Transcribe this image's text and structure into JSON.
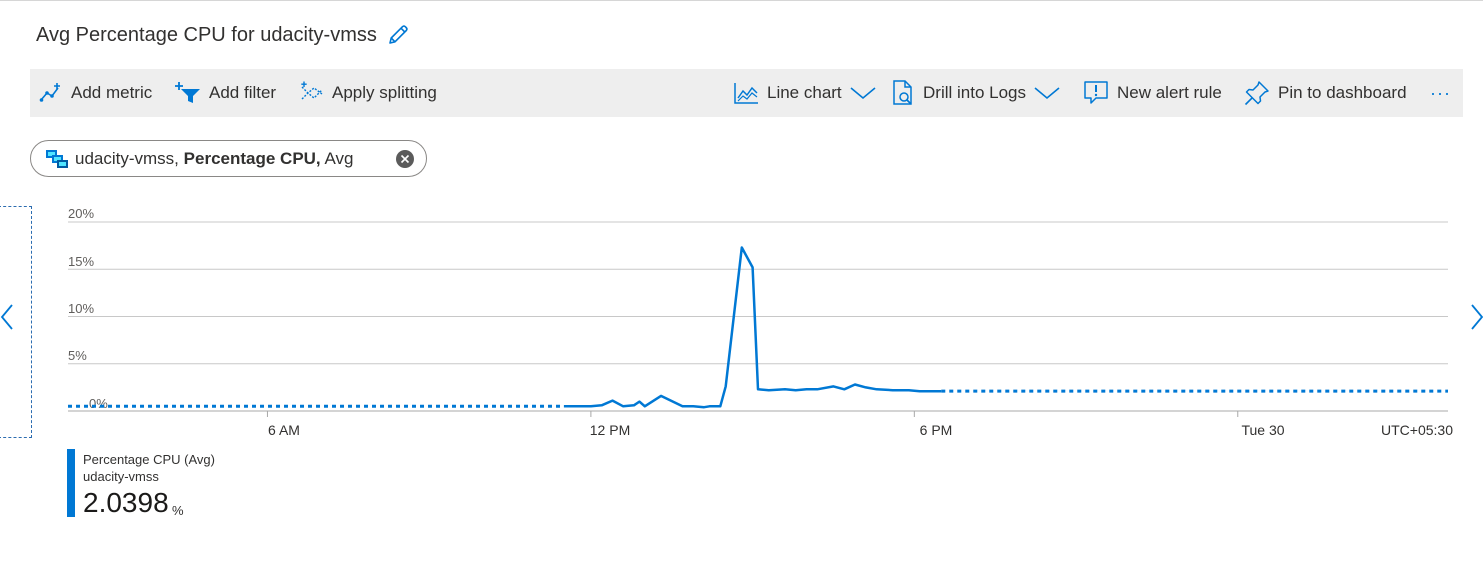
{
  "title": "Avg Percentage CPU for udacity-vmss",
  "toolbar": {
    "add_metric": "Add metric",
    "add_filter": "Add filter",
    "apply_splitting": "Apply splitting",
    "line_chart": "Line chart",
    "drill_into_logs": "Drill into Logs",
    "new_alert_rule": "New alert rule",
    "pin_to_dashboard": "Pin to dashboard",
    "more": "···"
  },
  "metric_pill": {
    "resource": "udacity-vmss,",
    "metric": "Percentage CPU,",
    "aggregation": "Avg"
  },
  "legend": {
    "metric": "Percentage CPU (Avg)",
    "resource": "udacity-vmss",
    "value": "2.0398",
    "unit": "%"
  },
  "timezone": "UTC+05:30",
  "colors": {
    "accent": "#0078d4",
    "toolbar_bg": "#eeeeee",
    "grid": "#c8c8c8"
  },
  "chart_data": {
    "type": "line",
    "y_ticks": [
      "20%",
      "15%",
      "10%",
      "5%",
      "0%"
    ],
    "x_ticks": [
      "6 AM",
      "12 PM",
      "6 PM",
      "Tue 30"
    ],
    "ylim": [
      0,
      20
    ],
    "x_unit": "hours since midnight (local)",
    "xlim": [
      2.3,
      27.9
    ],
    "series": [
      {
        "name": "Percentage CPU (Avg)",
        "x": [
          11.5,
          12.0,
          12.2,
          12.4,
          12.6,
          12.8,
          12.9,
          13.0,
          13.3,
          13.7,
          13.9,
          14.1,
          14.2,
          14.4,
          14.5,
          14.8,
          15.0,
          15.1,
          15.3,
          15.6,
          15.8,
          16.0,
          16.2,
          16.5,
          16.7,
          16.9,
          17.1,
          17.3,
          17.6,
          17.9,
          18.1,
          18.3,
          18.5
        ],
        "y": [
          0.5,
          0.5,
          0.6,
          1.1,
          0.5,
          0.6,
          1.0,
          0.5,
          1.6,
          0.5,
          0.5,
          0.4,
          0.5,
          0.5,
          2.6,
          17.3,
          15.2,
          2.3,
          2.2,
          2.3,
          2.2,
          2.3,
          2.3,
          2.6,
          2.3,
          2.8,
          2.5,
          2.3,
          2.2,
          2.2,
          2.1,
          2.1,
          2.1
        ]
      }
    ],
    "dotted_segments": [
      {
        "x": [
          2.3,
          11.5
        ],
        "y": [
          0.5,
          0.5
        ]
      },
      {
        "x": [
          18.5,
          27.9
        ],
        "y": [
          2.1,
          2.1
        ]
      }
    ]
  }
}
